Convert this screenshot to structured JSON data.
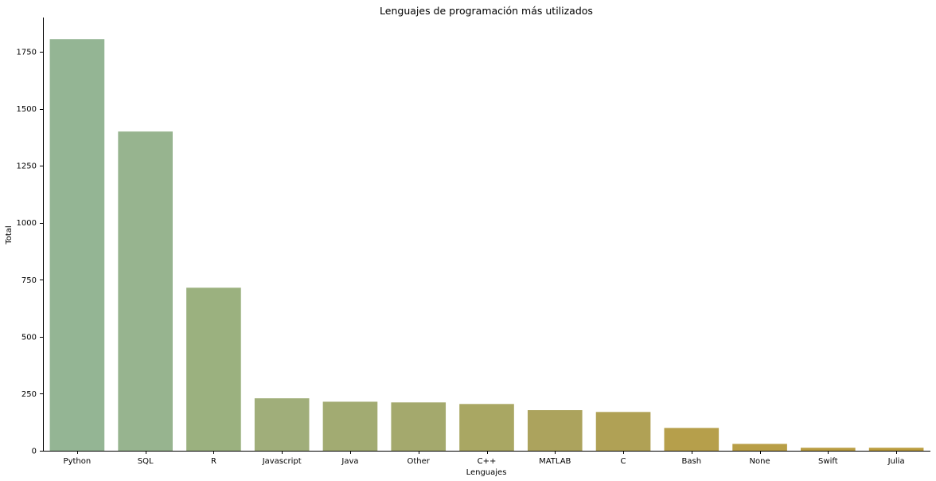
{
  "chart_data": {
    "type": "bar",
    "title": "Lenguajes de programación más utilizados",
    "xlabel": "Lenguajes",
    "ylabel": "Total",
    "categories": [
      "Python",
      "SQL",
      "R",
      "Javascript",
      "Java",
      "Other",
      "C++",
      "MATLAB",
      "C",
      "Bash",
      "None",
      "Swift",
      "Julia"
    ],
    "values": [
      1805,
      1400,
      715,
      230,
      215,
      212,
      205,
      178,
      170,
      100,
      30,
      13,
      13
    ],
    "colors": [
      "#94b594",
      "#97b48f",
      "#9bb17f",
      "#a0ae7a",
      "#a2ab72",
      "#a4a96d",
      "#a9a763",
      "#aca35d",
      "#b0a155",
      "#b69f4b",
      "#b89e46",
      "#b99d42",
      "#ba9c3e"
    ],
    "ylim": [
      0,
      1900
    ],
    "yticks": [
      0,
      250,
      500,
      750,
      1000,
      1250,
      1500,
      1750
    ],
    "grid": false,
    "legend": "none"
  }
}
